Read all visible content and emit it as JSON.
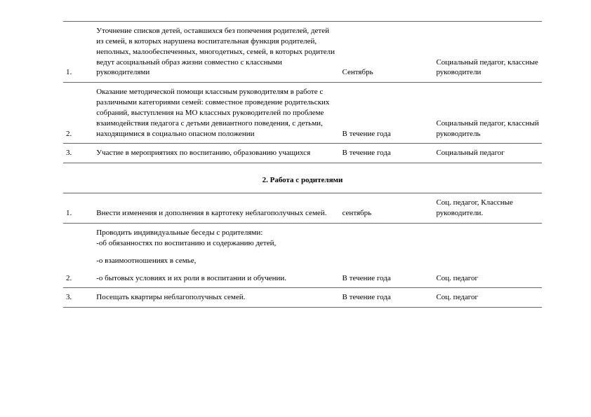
{
  "tables": [
    {
      "rows": [
        {
          "num": "1.",
          "desc": "Уточнение списков детей, оставшихся без попечения родителей, детей из семей, в которых нарушена воспитательная функция родителей, неполных, малообеспеченных, многодетных, семей, в которых родители ведут асоциальный образ жизни совместно с классными руководителями",
          "time": "Сентябрь",
          "resp": "Социальный педагог, классные руководители"
        },
        {
          "num": "2.",
          "desc": "Оказание методической помощи классным руководителям в работе с различными категориями семей: совместное проведение родительских собраний, выступления на МО классных руководителей по проблеме взаимодействия педагога с детьми девиантного поведения, с детьми, находящимися в социально опасном положении",
          "time": "В течение года",
          "resp": "Социальный педагог, классный руководитель"
        },
        {
          "num": "3.",
          "desc": "Участие в мероприятиях по воспитанию, образованию учащихся",
          "time": "В течение года",
          "resp": "Социальный педагог"
        }
      ]
    },
    {
      "heading": "2.   Работа с родителями",
      "rows": [
        {
          "num": "1.",
          "desc": "Внести изменения и дополнения в картотеку неблагополучных семей.",
          "time": "сентябрь",
          "resp": "Соц. педагог,\nКлассные руководители."
        },
        {
          "num": "2.",
          "desc_multiline": [
            "Проводить индивидуальные беседы с родителями:",
            "-об обязанностях по воспитанию и содержанию детей,",
            "-о взаимоотношениях в семье,",
            "-о бытовых условиях и их роли в воспитании и обучении."
          ],
          "time": "В течение года",
          "resp": "Соц. педагог"
        },
        {
          "num": "3.",
          "desc": "Посещать квартиры неблагополучных семей.",
          "time": "В течение года",
          "resp": "Соц. педагог"
        }
      ]
    }
  ]
}
